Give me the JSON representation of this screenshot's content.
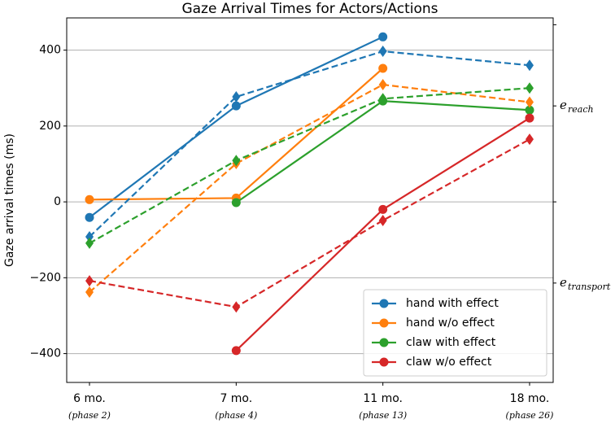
{
  "chart_data": {
    "type": "line",
    "title": "Gaze Arrival Times for Actors/Actions",
    "ylabel": "Gaze arrival times (ms)",
    "categories": [
      "6 mo.",
      "7 mo.",
      "11 mo.",
      "18 mo."
    ],
    "category_notes": [
      "(phase 2)",
      "(phase 4)",
      "(phase 13)",
      "(phase 26)"
    ],
    "series": [
      {
        "name": "hand with effect",
        "color": "#1f77b4",
        "marker": "circle",
        "dashed": false,
        "values": [
          -41,
          253,
          435,
          null
        ]
      },
      {
        "name": "hand w/o effect",
        "color": "#ff7f0e",
        "marker": "circle",
        "dashed": false,
        "values": [
          6,
          10,
          352,
          null
        ]
      },
      {
        "name": "claw with effect",
        "color": "#2ca02c",
        "marker": "circle",
        "dashed": false,
        "values": [
          null,
          -2,
          266,
          242
        ]
      },
      {
        "name": "claw w/o effect",
        "color": "#d62728",
        "marker": "circle",
        "dashed": false,
        "values": [
          null,
          -392,
          -20,
          221
        ]
      },
      {
        "color": "#1f77b4",
        "marker": "diamond",
        "dashed": true,
        "values": [
          -92,
          277,
          397,
          360
        ]
      },
      {
        "color": "#ff7f0e",
        "marker": "diamond",
        "dashed": true,
        "values": [
          -238,
          101,
          309,
          263
        ]
      },
      {
        "color": "#2ca02c",
        "marker": "diamond",
        "dashed": true,
        "values": [
          -109,
          109,
          272,
          300
        ]
      },
      {
        "color": "#d62728",
        "marker": "diamond",
        "dashed": true,
        "values": [
          -208,
          -277,
          -49,
          165
        ]
      }
    ],
    "ylim": [
      -476,
      485
    ],
    "yticks": [
      {
        "value": -400,
        "label": "−400"
      },
      {
        "value": -200,
        "label": "−200"
      },
      0,
      200,
      400
    ],
    "y2lim": [
      -476,
      485
    ],
    "y2ticks": [
      {
        "value": 467,
        "label": null
      },
      {
        "value": 253,
        "label": "e",
        "sub": "reach"
      },
      {
        "value": 0,
        "label": null
      },
      {
        "value": -214,
        "label": "e",
        "sub": "transport"
      }
    ],
    "grid": true,
    "legend": "lower right"
  }
}
